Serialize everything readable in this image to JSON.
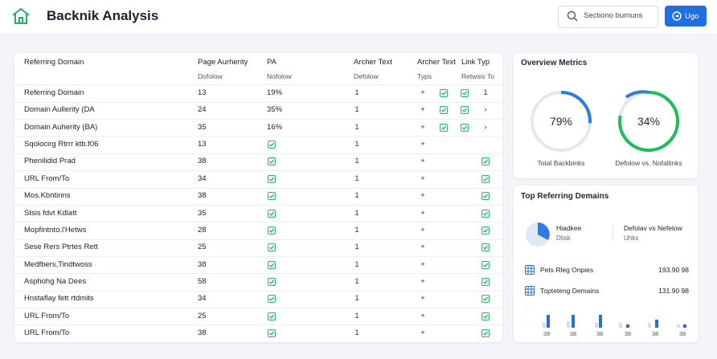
{
  "header": {
    "title": "Backnik Analysis",
    "search_placeholder": "Sectiono bumuns",
    "button": "Ugo"
  },
  "table": {
    "columns": [
      "Referring Domain",
      "Page Aurherity",
      "PA",
      "Archer Text",
      "Archer Text",
      "Link Typ"
    ],
    "subheaders": [
      "Dofolow",
      "Nofolow",
      "Defolow",
      "Typs",
      "Retwsis To"
    ],
    "rows": [
      [
        "Referring Domain",
        "13",
        "19%",
        "1",
        "+",
        "1"
      ],
      [
        "Domain Aullerity (DA",
        "24",
        "35%",
        "1",
        "+",
        "›"
      ],
      [
        "Domain Auherity (BA)",
        "35",
        "16%",
        "1",
        "+",
        "›"
      ],
      [
        "Sqolocirg Rtrrr ktb.f06",
        "13",
        null,
        "1",
        "+"
      ],
      [
        "Phenilidid Prad",
        "38",
        null,
        "1",
        "+",
        null
      ],
      [
        "URL From/To",
        "34",
        null,
        "1",
        "+",
        null
      ],
      [
        "Mos.Kbntinns",
        "38",
        null,
        "1",
        "+",
        null
      ],
      [
        "Stsis fdvt Kdlatt",
        "35",
        null,
        "1",
        "+",
        null
      ],
      [
        "Mopfintnto.l'Hetws",
        "28",
        null,
        "1",
        "+",
        null
      ],
      [
        "Sese Rers Ptrtes Rett",
        "25",
        null,
        "1",
        "+",
        null
      ],
      [
        "Medfbers,Tindtwoss",
        "38",
        null,
        "1",
        "+",
        null
      ],
      [
        "Asphohg Na Dees",
        "58",
        null,
        "1",
        "+",
        null
      ],
      [
        "Hnstaflay fett rtdmits",
        "34",
        null,
        "1",
        "+",
        null
      ],
      [
        "URL From/To",
        "25",
        null,
        "1",
        "+",
        null
      ],
      [
        "URL From/To",
        "38",
        null,
        "1",
        "+",
        null
      ]
    ]
  },
  "overview": {
    "title": "Overview Metrics",
    "metrics": [
      {
        "value": "79%",
        "label": "Total Backbinks"
      },
      {
        "value": "34%",
        "label": "Defolow vs. Nofallinks"
      }
    ]
  },
  "top_domains": {
    "title": "Top Referring Demains",
    "legend": [
      {
        "title": "Hiadkee",
        "subtitle": "Dtisk"
      },
      {
        "title": "Defolav vs Nefelow",
        "subtitle": "Uhks"
      }
    ],
    "items": [
      {
        "label": "Pets Rleg Onpies",
        "value": "193.90 98"
      },
      {
        "label": "Topteteng Demains",
        "value": "131.90 98"
      }
    ],
    "bar_labels": [
      "38",
      "38",
      "38",
      "38",
      "38",
      "38"
    ]
  }
}
